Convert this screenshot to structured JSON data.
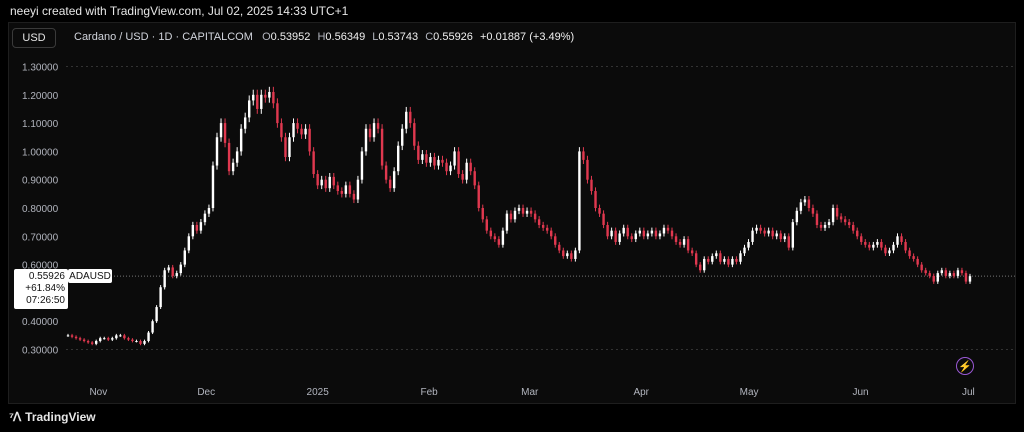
{
  "header": {
    "creator_text": "neeyi created with TradingView.com, Jul 02, 2025 14:33 UTC+1"
  },
  "toolbar": {
    "currency": "USD"
  },
  "legend": {
    "symbol": "Cardano / USD · 1D · CAPITALCOM",
    "open_label": "O",
    "open": "0.53952",
    "high_label": "H",
    "high": "0.56349",
    "low_label": "L",
    "low": "0.53743",
    "close_label": "C",
    "close": "0.55926",
    "change": "+0.01887 (+3.49%)"
  },
  "price_label": {
    "price": "0.55926",
    "change_pct": "+61.84%",
    "countdown": "07:26:50",
    "symbol": "ADAUSD"
  },
  "brand": {
    "name": "TradingView"
  },
  "colors": {
    "up": "#ffffff",
    "down": "#e0384f",
    "background": "#0b0b0b",
    "grid": "#2a2a2a",
    "accent": "#9b59d6"
  },
  "icons": {
    "lightning": "lightning-icon",
    "logo": "tradingview-logo-icon"
  },
  "chart_data": {
    "type": "candlestick",
    "title": "Cardano / USD · 1D · CAPITALCOM",
    "y_ticks": [
      "1.30000",
      "1.20000",
      "1.10000",
      "1.00000",
      "0.90000",
      "0.80000",
      "0.70000",
      "0.60000",
      "0.40000",
      "0.30000"
    ],
    "y_tick_values": [
      1.3,
      1.2,
      1.1,
      1.0,
      0.9,
      0.8,
      0.7,
      0.6,
      0.4,
      0.3
    ],
    "x_ticks": [
      "Nov",
      "Dec",
      "2025",
      "Feb",
      "Mar",
      "Apr",
      "May",
      "Jun",
      "Jul"
    ],
    "x_tick_dates": [
      "2024-11-01",
      "2024-12-01",
      "2025-01-01",
      "2025-02-01",
      "2025-03-01",
      "2025-04-01",
      "2025-05-01",
      "2025-06-01",
      "2025-07-01"
    ],
    "ylim": [
      0.27,
      1.33
    ],
    "start_date": "2024-10-23",
    "end_date": "2025-07-02",
    "grid": false,
    "last_price_line": 0.55926,
    "closes": [
      0.35,
      0.345,
      0.34,
      0.335,
      0.33,
      0.325,
      0.32,
      0.33,
      0.34,
      0.34,
      0.335,
      0.34,
      0.35,
      0.35,
      0.34,
      0.335,
      0.33,
      0.33,
      0.32,
      0.33,
      0.36,
      0.4,
      0.45,
      0.52,
      0.58,
      0.59,
      0.56,
      0.57,
      0.6,
      0.65,
      0.7,
      0.74,
      0.72,
      0.75,
      0.78,
      0.8,
      0.95,
      1.05,
      1.1,
      1.03,
      0.93,
      0.96,
      1.0,
      1.08,
      1.12,
      1.18,
      1.2,
      1.15,
      1.2,
      1.19,
      1.21,
      1.17,
      1.1,
      1.05,
      0.98,
      1.05,
      1.1,
      1.08,
      1.06,
      1.08,
      1.0,
      0.92,
      0.88,
      0.9,
      0.87,
      0.91,
      0.88,
      0.86,
      0.85,
      0.88,
      0.85,
      0.83,
      0.9,
      1.0,
      1.08,
      1.05,
      1.1,
      1.08,
      0.95,
      0.9,
      0.87,
      0.93,
      1.02,
      1.08,
      1.14,
      1.1,
      1.02,
      0.97,
      0.99,
      0.96,
      0.98,
      0.95,
      0.97,
      0.96,
      0.93,
      0.95,
      1.0,
      0.92,
      0.9,
      0.96,
      0.93,
      0.88,
      0.8,
      0.76,
      0.72,
      0.7,
      0.69,
      0.67,
      0.72,
      0.78,
      0.76,
      0.79,
      0.8,
      0.78,
      0.79,
      0.78,
      0.76,
      0.74,
      0.73,
      0.72,
      0.7,
      0.67,
      0.65,
      0.63,
      0.64,
      0.62,
      0.65,
      1.0,
      0.97,
      0.9,
      0.86,
      0.8,
      0.78,
      0.74,
      0.7,
      0.72,
      0.68,
      0.71,
      0.73,
      0.7,
      0.69,
      0.71,
      0.72,
      0.7,
      0.71,
      0.72,
      0.7,
      0.71,
      0.73,
      0.72,
      0.7,
      0.68,
      0.67,
      0.69,
      0.65,
      0.64,
      0.6,
      0.58,
      0.62,
      0.61,
      0.63,
      0.64,
      0.61,
      0.62,
      0.6,
      0.62,
      0.61,
      0.64,
      0.66,
      0.68,
      0.72,
      0.73,
      0.72,
      0.71,
      0.72,
      0.7,
      0.71,
      0.69,
      0.7,
      0.66,
      0.75,
      0.79,
      0.82,
      0.83,
      0.8,
      0.78,
      0.74,
      0.73,
      0.74,
      0.75,
      0.8,
      0.77,
      0.76,
      0.75,
      0.74,
      0.72,
      0.7,
      0.68,
      0.67,
      0.66,
      0.67,
      0.68,
      0.66,
      0.64,
      0.65,
      0.67,
      0.7,
      0.68,
      0.65,
      0.63,
      0.62,
      0.6,
      0.58,
      0.57,
      0.56,
      0.54,
      0.57,
      0.58,
      0.56,
      0.57,
      0.56,
      0.58,
      0.57,
      0.54,
      0.559
    ]
  }
}
